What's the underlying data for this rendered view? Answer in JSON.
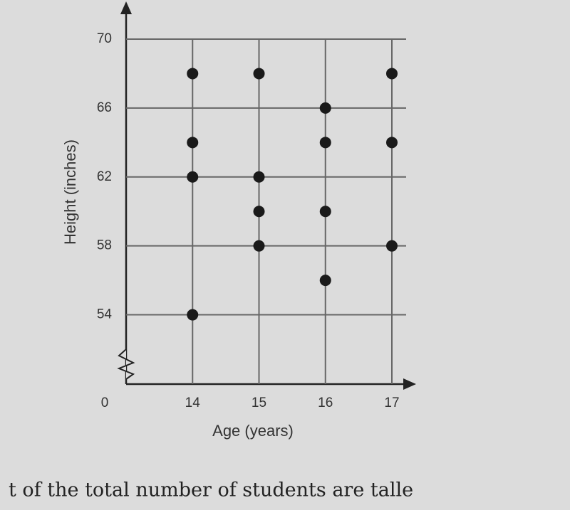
{
  "chart_data": {
    "type": "scatter",
    "x_label": "Age (years)",
    "y_label": "Height (inches)",
    "origin_label": "0",
    "x": [
      14,
      14,
      14,
      14,
      15,
      15,
      15,
      15,
      16,
      16,
      16,
      16,
      17,
      17,
      17
    ],
    "y": [
      68,
      64,
      62,
      54,
      68,
      62,
      60,
      58,
      66,
      64,
      60,
      56,
      68,
      64,
      58
    ],
    "color": "#1a1a1a",
    "xlim": [
      13,
      17
    ],
    "xticks": [
      14,
      15,
      16,
      17
    ],
    "ylim": [
      52,
      70
    ],
    "yticks": [
      54,
      58,
      62,
      66,
      70
    ],
    "grid": true,
    "caption": "t of the total number of students are talle"
  }
}
